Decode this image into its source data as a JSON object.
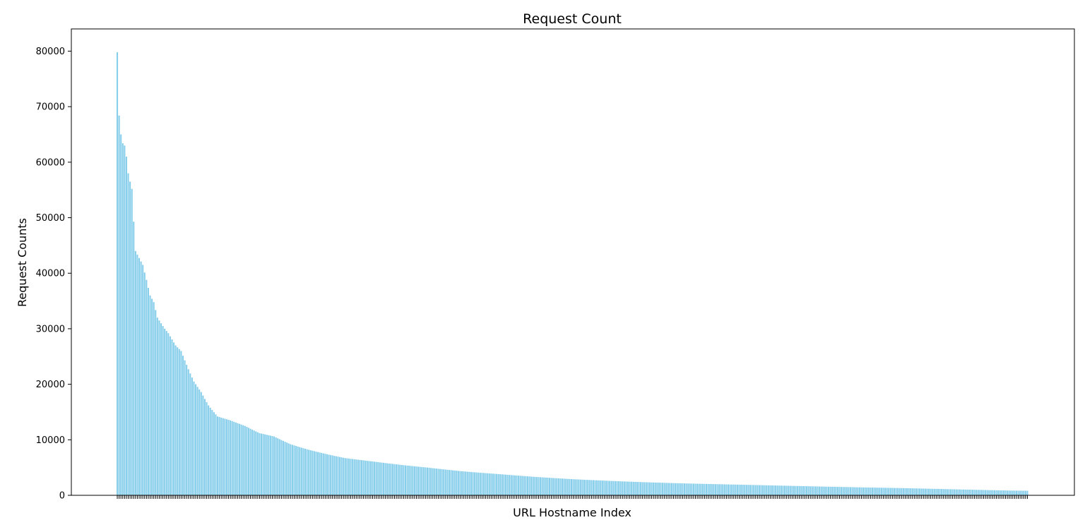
{
  "chart_data": {
    "type": "bar",
    "title": "Request Count",
    "xlabel": "URL Hostname Index",
    "ylabel": "Request Counts",
    "ylim": [
      0,
      84000
    ],
    "yticks": [
      0,
      10000,
      20000,
      30000,
      40000,
      50000,
      60000,
      70000,
      80000
    ],
    "x_tick_labels_shown": false,
    "grid": false,
    "bar_color": "#87CEEB",
    "tick_mark_color": "#000000",
    "decay_profile": {
      "max": 79800,
      "second": 68400,
      "approx_count": 500,
      "tail_min": 480,
      "anchors": [
        [
          0,
          79800
        ],
        [
          1,
          68400
        ],
        [
          2,
          65000
        ],
        [
          3,
          63400
        ],
        [
          4,
          63000
        ],
        [
          5,
          61000
        ],
        [
          6,
          58000
        ],
        [
          7,
          56500
        ],
        [
          8,
          55200
        ],
        [
          10,
          44000
        ],
        [
          14,
          41500
        ],
        [
          16,
          38800
        ],
        [
          18,
          36000
        ],
        [
          20,
          34800
        ],
        [
          22,
          32000
        ],
        [
          26,
          30000
        ],
        [
          28,
          29200
        ],
        [
          32,
          27000
        ],
        [
          35,
          26000
        ],
        [
          38,
          23500
        ],
        [
          42,
          20500
        ],
        [
          46,
          18600
        ],
        [
          50,
          16200
        ],
        [
          55,
          14200
        ],
        [
          62,
          13500
        ],
        [
          70,
          12500
        ],
        [
          78,
          11200
        ],
        [
          86,
          10600
        ],
        [
          95,
          9200
        ],
        [
          105,
          8200
        ],
        [
          115,
          7400
        ],
        [
          125,
          6700
        ],
        [
          140,
          6100
        ],
        [
          155,
          5500
        ],
        [
          170,
          5000
        ],
        [
          190,
          4300
        ],
        [
          210,
          3800
        ],
        [
          230,
          3300
        ],
        [
          250,
          2900
        ],
        [
          270,
          2600
        ],
        [
          290,
          2350
        ],
        [
          310,
          2150
        ],
        [
          330,
          2000
        ],
        [
          350,
          1850
        ],
        [
          370,
          1700
        ],
        [
          390,
          1550
        ],
        [
          410,
          1420
        ],
        [
          430,
          1300
        ],
        [
          450,
          1150
        ],
        [
          470,
          1000
        ],
        [
          490,
          850
        ],
        [
          510,
          780
        ],
        [
          530,
          740
        ],
        [
          550,
          720
        ],
        [
          570,
          690
        ],
        [
          590,
          650
        ],
        [
          610,
          600
        ],
        [
          630,
          560
        ],
        [
          650,
          520
        ],
        [
          665,
          500
        ]
      ]
    }
  }
}
